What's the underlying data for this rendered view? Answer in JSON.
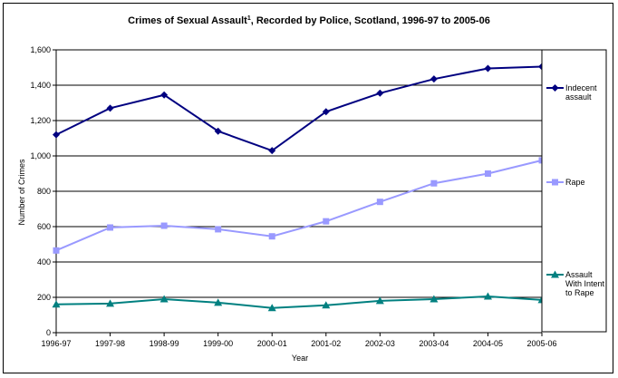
{
  "chart_data": {
    "type": "line",
    "title": "Crimes of Sexual Assault",
    "title_sup": "1",
    "title_rest": ",  Recorded by Police, Scotland, 1996-97 to 2005-06",
    "xlabel": "Year",
    "ylabel": "Number of Crimes",
    "ylim": [
      0,
      1600
    ],
    "y_ticks": [
      "0",
      "200",
      "400",
      "600",
      "800",
      "1,000",
      "1,200",
      "1,400",
      "1,600"
    ],
    "grid": "horizontal",
    "legend_position": "right",
    "categories": [
      "1996-97",
      "1997-98",
      "1998-99",
      "1999-00",
      "2000-01",
      "2001-02",
      "2002-03",
      "2003-04",
      "2004-05",
      "2005-06"
    ],
    "series": [
      {
        "name": "Indecent assault",
        "legend_lines": [
          "Indecent",
          "assault"
        ],
        "marker": "diamond",
        "color": "#000080",
        "values": [
          1120,
          1270,
          1345,
          1140,
          1030,
          1250,
          1355,
          1435,
          1495,
          1505
        ]
      },
      {
        "name": "Rape",
        "legend_lines": [
          "Rape"
        ],
        "marker": "square",
        "color": "#9999ff",
        "values": [
          465,
          595,
          605,
          585,
          545,
          630,
          740,
          845,
          900,
          975
        ]
      },
      {
        "name": "Assault With Intent to Rape",
        "legend_lines": [
          "Assault",
          "With Intent",
          "to Rape"
        ],
        "marker": "triangle",
        "color": "#008080",
        "values": [
          160,
          165,
          190,
          170,
          140,
          155,
          180,
          190,
          205,
          185
        ]
      }
    ]
  }
}
